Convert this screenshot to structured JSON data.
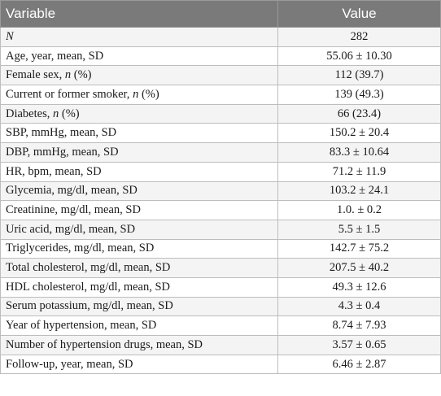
{
  "header": {
    "variable": "Variable",
    "value": "Value"
  },
  "rows": [
    {
      "label": "",
      "italic": "N",
      "suffix": "",
      "value": "282"
    },
    {
      "label": "Age, year, mean, SD",
      "italic": "",
      "suffix": "",
      "value": "55.06 ± 10.30"
    },
    {
      "label": "Female sex, ",
      "italic": "n",
      "suffix": " (%)",
      "value": "112 (39.7)"
    },
    {
      "label": "Current or former smoker, ",
      "italic": "n",
      "suffix": " (%)",
      "value": "139 (49.3)"
    },
    {
      "label": "Diabetes, ",
      "italic": "n",
      "suffix": " (%)",
      "value": "66 (23.4)"
    },
    {
      "label": "SBP, mmHg, mean, SD",
      "italic": "",
      "suffix": "",
      "value": "150.2 ± 20.4"
    },
    {
      "label": "DBP, mmHg, mean, SD",
      "italic": "",
      "suffix": "",
      "value": "83.3 ± 10.64"
    },
    {
      "label": "HR, bpm, mean, SD",
      "italic": "",
      "suffix": "",
      "value": "71.2 ± 11.9"
    },
    {
      "label": "Glycemia, mg/dl, mean, SD",
      "italic": "",
      "suffix": "",
      "value": "103.2 ± 24.1"
    },
    {
      "label": "Creatinine, mg/dl, mean, SD",
      "italic": "",
      "suffix": "",
      "value": "1.0. ± 0.2"
    },
    {
      "label": "Uric acid, mg/dl, mean, SD",
      "italic": "",
      "suffix": "",
      "value": "5.5 ± 1.5"
    },
    {
      "label": "Triglycerides, mg/dl, mean, SD",
      "italic": "",
      "suffix": "",
      "value": "142.7 ± 75.2"
    },
    {
      "label": "Total cholesterol, mg/dl, mean, SD",
      "italic": "",
      "suffix": "",
      "value": "207.5 ± 40.2"
    },
    {
      "label": "HDL cholesterol, mg/dl, mean, SD",
      "italic": "",
      "suffix": "",
      "value": "49.3 ± 12.6"
    },
    {
      "label": "Serum potassium, mg/dl, mean, SD",
      "italic": "",
      "suffix": "",
      "value": "4.3 ± 0.4"
    },
    {
      "label": "Year of hypertension, mean, SD",
      "italic": "",
      "suffix": "",
      "value": "8.74 ± 7.93"
    },
    {
      "label": "Number of hypertension drugs, mean, SD",
      "italic": "",
      "suffix": "",
      "value": "3.57 ± 0.65"
    },
    {
      "label": "Follow-up, year, mean, SD",
      "italic": "",
      "suffix": "",
      "value": "6.46 ± 2.87"
    }
  ]
}
